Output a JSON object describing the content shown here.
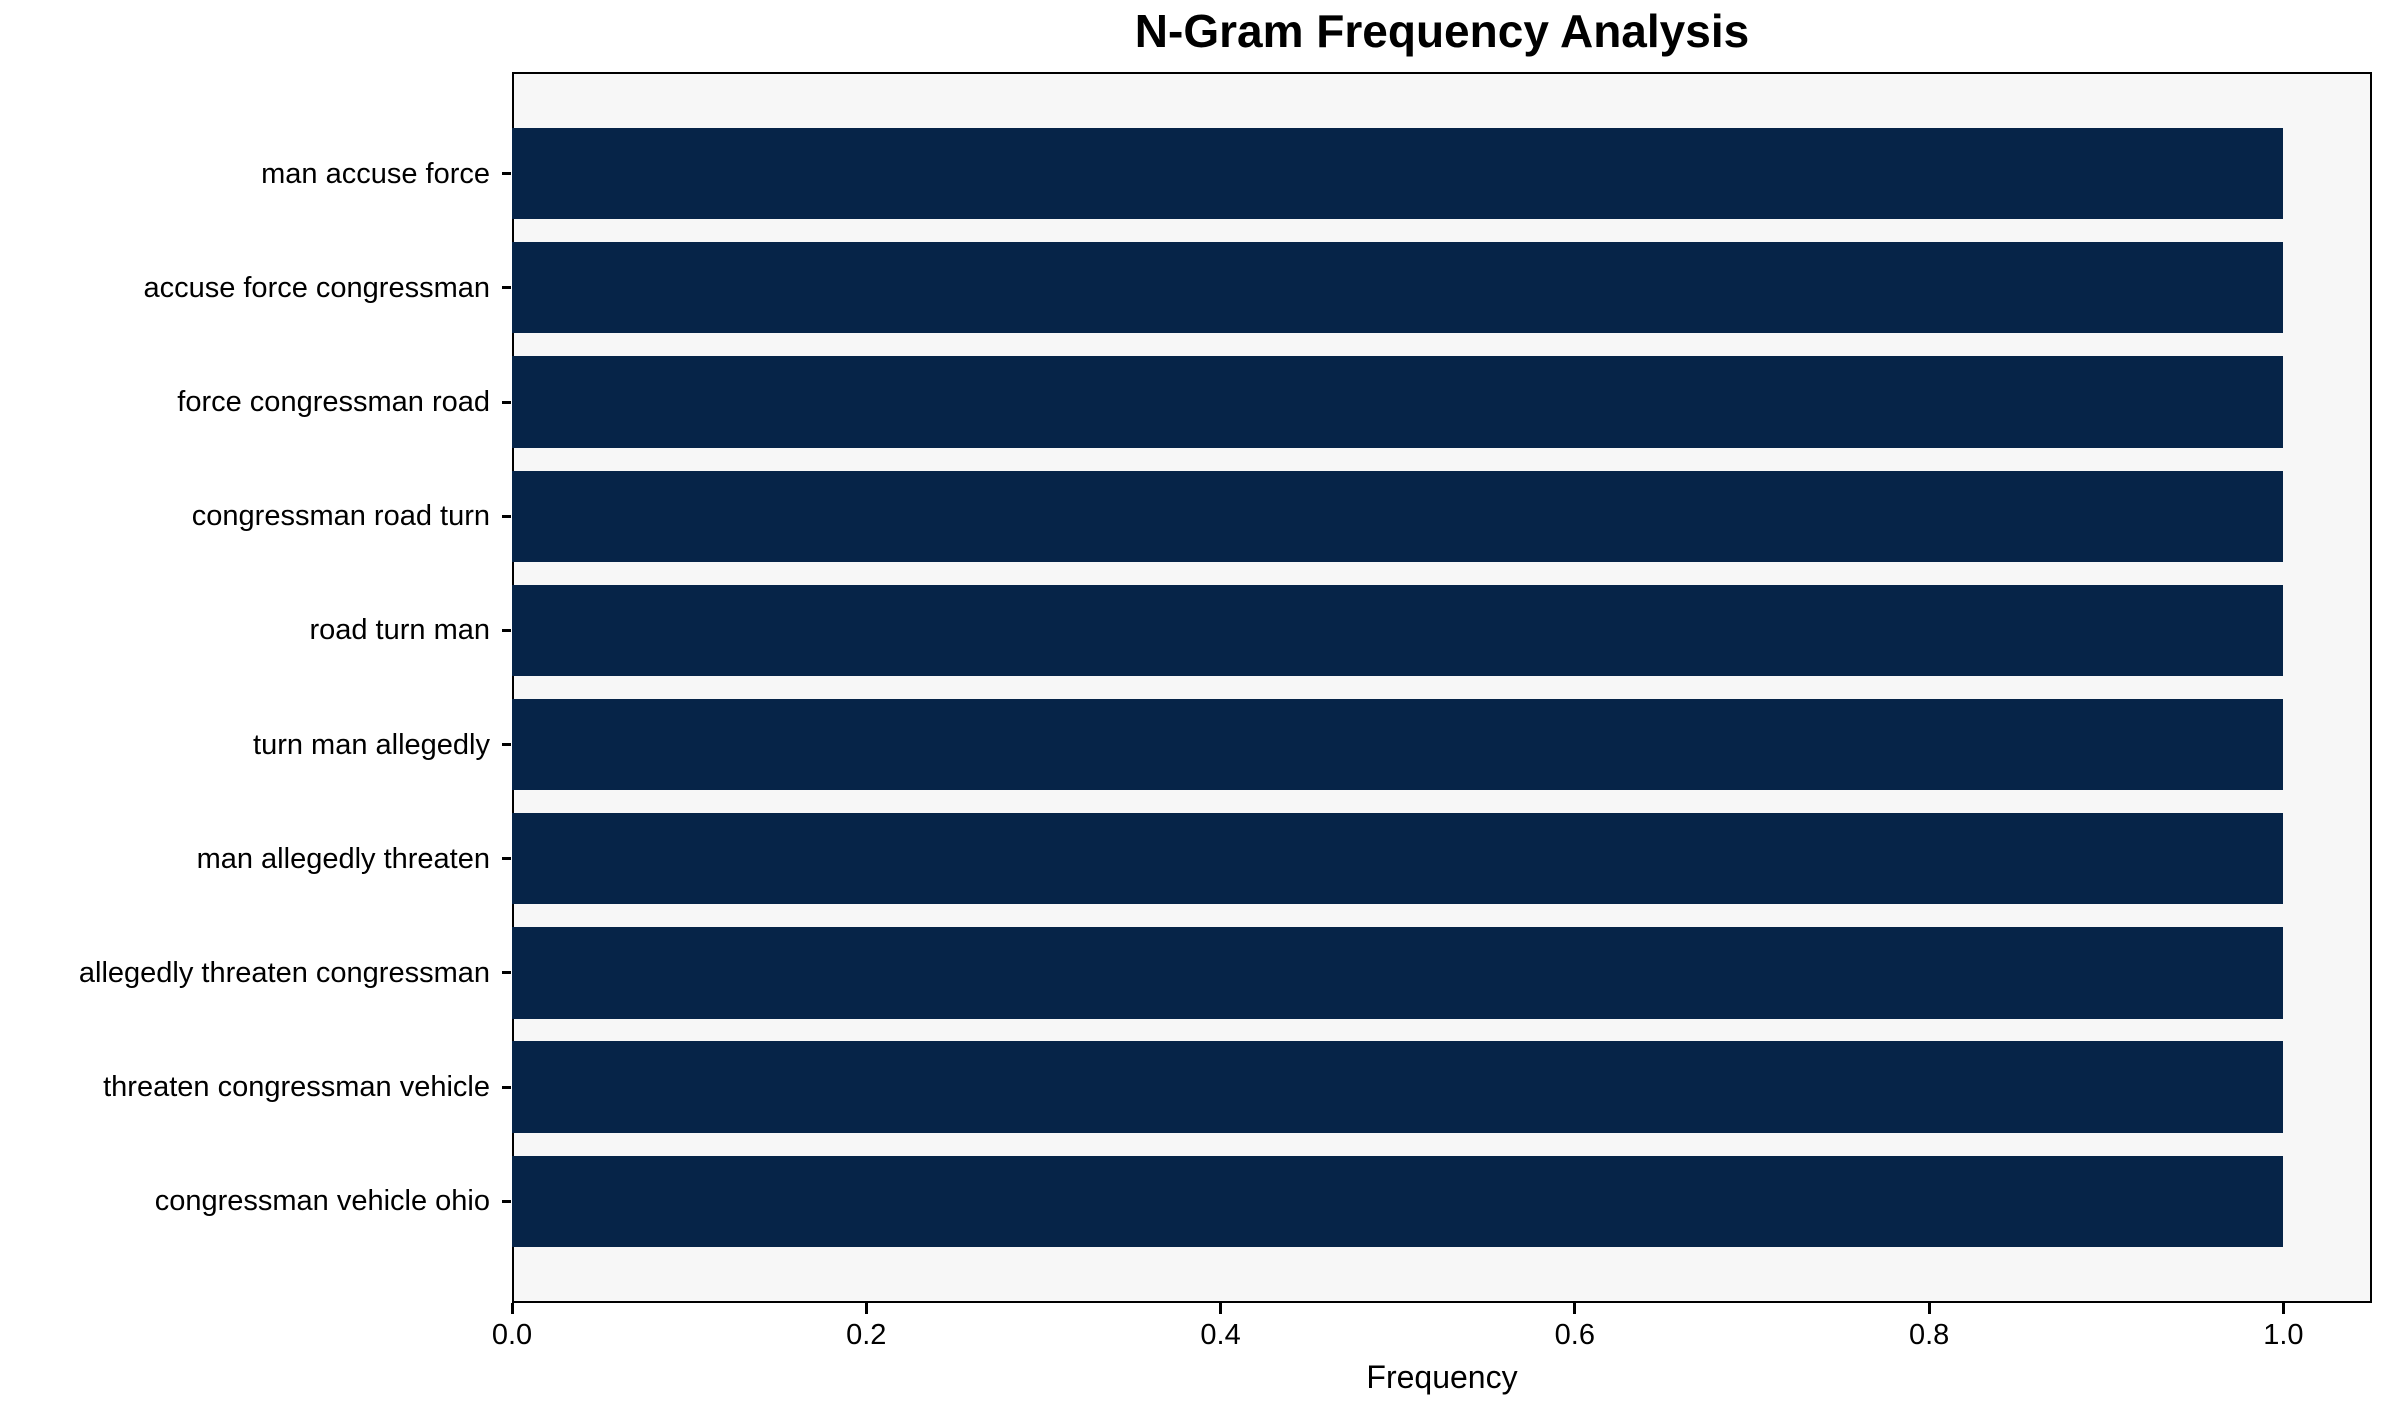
{
  "chart_data": {
    "type": "bar",
    "orientation": "horizontal",
    "title": "N-Gram Frequency Analysis",
    "xlabel": "Frequency",
    "ylabel": "",
    "categories": [
      "man accuse force",
      "accuse force congressman",
      "force congressman road",
      "congressman road turn",
      "road turn man",
      "turn man allegedly",
      "man allegedly threaten",
      "allegedly threaten congressman",
      "threaten congressman vehicle",
      "congressman vehicle ohio"
    ],
    "values": [
      1.0,
      1.0,
      1.0,
      1.0,
      1.0,
      1.0,
      1.0,
      1.0,
      1.0,
      1.0
    ],
    "xlim": [
      0,
      1.05
    ],
    "xticks": [
      0.0,
      0.2,
      0.4,
      0.6,
      0.8,
      1.0
    ],
    "xtick_labels": [
      "0.0",
      "0.2",
      "0.4",
      "0.6",
      "0.8",
      "1.0"
    ],
    "bar_color": "#062448",
    "bar_height_fraction": 0.8,
    "plot_background": "#f7f7f7",
    "figure_background": "#ffffff",
    "spine_color": "#000000",
    "text_color": "#000000",
    "grid": false,
    "legend": "none"
  }
}
